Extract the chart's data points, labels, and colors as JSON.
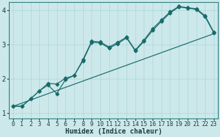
{
  "xlabel": "Humidex (Indice chaleur)",
  "background_color": "#cce8ea",
  "grid_color": "#aad4d8",
  "line_color": "#1a6b6b",
  "xlim": [
    -0.5,
    23.5
  ],
  "ylim": [
    0.85,
    4.25
  ],
  "xticks": [
    0,
    1,
    2,
    3,
    4,
    5,
    6,
    7,
    8,
    9,
    10,
    11,
    12,
    13,
    14,
    15,
    16,
    17,
    18,
    19,
    20,
    21,
    22,
    23
  ],
  "yticks": [
    1,
    2,
    3,
    4
  ],
  "line1_x": [
    0,
    1,
    2,
    3,
    4,
    5,
    6,
    7,
    8,
    9,
    10,
    11,
    12,
    13,
    14,
    15,
    16,
    17,
    18,
    19,
    20,
    21,
    22,
    23
  ],
  "line1_y": [
    1.2,
    1.2,
    1.42,
    1.65,
    1.82,
    1.57,
    1.98,
    2.1,
    2.53,
    3.07,
    3.05,
    2.9,
    3.03,
    3.2,
    2.82,
    3.1,
    3.42,
    3.68,
    3.93,
    4.1,
    4.07,
    4.03,
    3.82,
    3.35
  ],
  "line2_x": [
    0,
    1,
    2,
    3,
    4,
    5,
    6,
    7,
    8,
    9,
    10,
    11,
    12,
    13,
    14,
    15,
    16,
    17,
    18,
    19,
    20,
    21,
    22,
    23
  ],
  "line2_y": [
    1.2,
    1.2,
    1.42,
    1.65,
    1.87,
    1.85,
    2.02,
    2.1,
    2.56,
    3.1,
    3.08,
    2.93,
    3.07,
    3.22,
    2.84,
    3.13,
    3.47,
    3.72,
    3.96,
    4.12,
    4.08,
    4.05,
    3.85,
    3.37
  ],
  "line3_x": [
    0,
    23
  ],
  "line3_y": [
    1.2,
    3.32
  ],
  "marker": "D",
  "marker_size": 2.5,
  "line_width": 0.9,
  "font_size_label": 7,
  "font_size_tick": 6
}
